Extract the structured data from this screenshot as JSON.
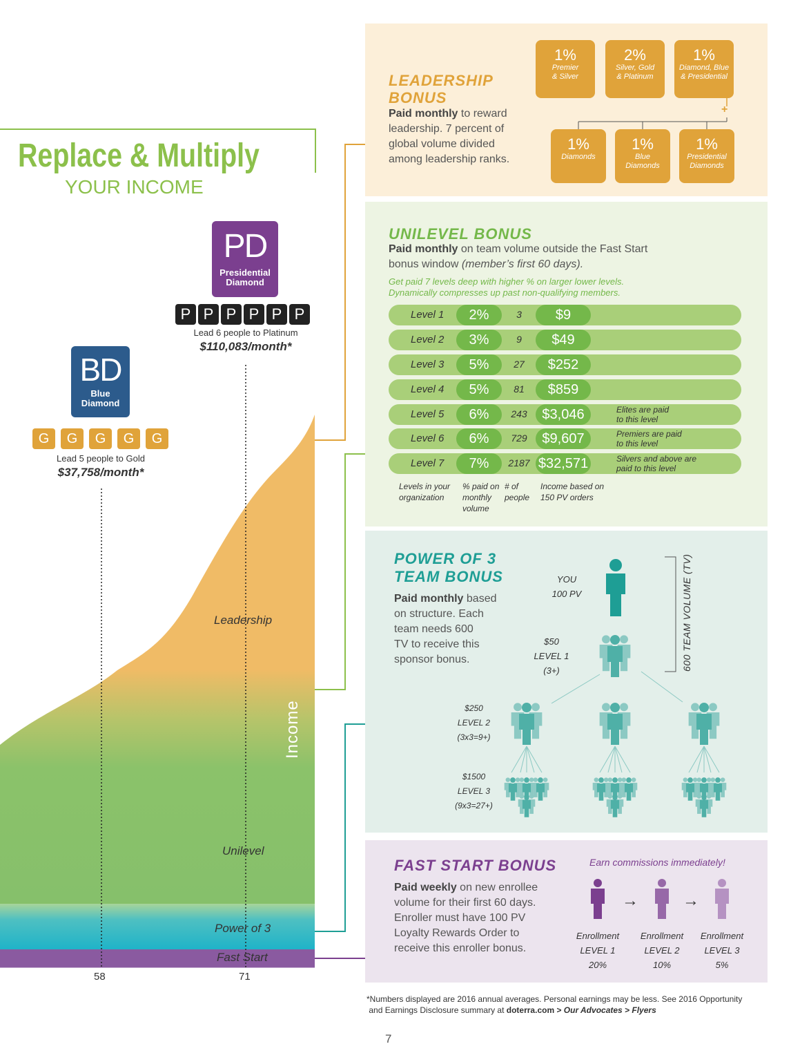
{
  "title": {
    "main": "Replace & Multiply",
    "sub": "YOUR INCOME"
  },
  "ranks": {
    "pd": {
      "abbr": "PD",
      "name_line1": "Presidential",
      "name_line2": "Diamond",
      "boxes": [
        "P",
        "P",
        "P",
        "P",
        "P",
        "P"
      ],
      "caption": "Lead 6 people to Platinum",
      "income": "$110,083/month*",
      "color": "#7b3f8f"
    },
    "bd": {
      "abbr": "BD",
      "name_line1": "Blue",
      "name_line2": "Diamond",
      "boxes": [
        "G",
        "G",
        "G",
        "G",
        "G"
      ],
      "caption": "Lead 5 people to Gold",
      "income": "$37,758/month*",
      "color": "#2c5b8c"
    }
  },
  "chart": {
    "layers": [
      "Leadership",
      "Unilevel",
      "Power of 3",
      "Fast Start"
    ],
    "axis_label": "Income",
    "ticks": [
      "58",
      "71"
    ]
  },
  "leadership": {
    "title_line1": "LEADERSHIP",
    "title_line2": "BONUS",
    "body_bold": "Paid monthly",
    "body": " to reward leadership. 7 percent of global volume divided among leadership ranks.",
    "boxes_top": [
      {
        "pct": "1%",
        "l1": "Premier",
        "l2": "& Silver"
      },
      {
        "pct": "2%",
        "l1": "Silver, Gold",
        "l2": "& Platinum"
      },
      {
        "pct": "1%",
        "l1": "Diamond, Blue",
        "l2": "& Presidential"
      }
    ],
    "plus": "+",
    "boxes_bottom": [
      {
        "pct": "1%",
        "l1": "Diamonds",
        "l2": ""
      },
      {
        "pct": "1%",
        "l1": "Blue",
        "l2": "Diamonds"
      },
      {
        "pct": "1%",
        "l1": "Presidential",
        "l2": "Diamonds"
      }
    ],
    "color": "#e0a33a"
  },
  "unilevel": {
    "title": "UNILEVEL BONUS",
    "body_bold": "Paid monthly",
    "body": " on team volume outside the Fast Start",
    "body2": "bonus window ",
    "body2_it": "(member’s first 60 days).",
    "note1": "Get paid 7 levels deep with higher % on larger lower levels.",
    "note2": "Dynamically compresses up past non-qualifying members.",
    "rows": [
      {
        "level": "Level 1",
        "pct": "2%",
        "people": "3",
        "income": "$9",
        "note1": "",
        "note2": ""
      },
      {
        "level": "Level 2",
        "pct": "3%",
        "people": "9",
        "income": "$49",
        "note1": "",
        "note2": ""
      },
      {
        "level": "Level 3",
        "pct": "5%",
        "people": "27",
        "income": "$252",
        "note1": "",
        "note2": ""
      },
      {
        "level": "Level 4",
        "pct": "5%",
        "people": "81",
        "income": "$859",
        "note1": "",
        "note2": ""
      },
      {
        "level": "Level 5",
        "pct": "6%",
        "people": "243",
        "income": "$3,046",
        "note1": "Elites are paid",
        "note2": "to this level"
      },
      {
        "level": "Level 6",
        "pct": "6%",
        "people": "729",
        "income": "$9,607",
        "note1": "Premiers are paid",
        "note2": "to this level"
      },
      {
        "level": "Level 7",
        "pct": "7%",
        "people": "2187",
        "income": "$32,571",
        "note1": "Silvers and above are",
        "note2": "paid to this level"
      }
    ],
    "col_heads": {
      "levels_l1": "Levels in your",
      "levels_l2": "organization",
      "pct_l1": "% paid on",
      "pct_l2": "monthly",
      "pct_l3": "volume",
      "ppl_l1": "# of",
      "ppl_l2": "people",
      "inc_l1": "Income based on",
      "inc_l2": "150 PV orders"
    },
    "color": "#74b84a"
  },
  "power3": {
    "title_line1": "POWER OF 3",
    "title_line2": "TEAM BONUS",
    "body_bold": "Paid monthly",
    "body_lines": [
      " based",
      "on structure. Each",
      "team needs 600",
      "TV to receive this",
      "sponsor bonus."
    ],
    "you_l1": "YOU",
    "you_l2": "100 PV",
    "lvl1": [
      "$50",
      "LEVEL 1",
      "(3+)"
    ],
    "lvl2": [
      "$250",
      "LEVEL 2",
      "(3x3=9+)"
    ],
    "lvl3": [
      "$1500",
      "LEVEL 3",
      "(9x3=27+)"
    ],
    "side_label": "600 TEAM VOLUME (TV)",
    "color": "#1e9e95"
  },
  "faststart": {
    "title": "FAST START BONUS",
    "tagline": "Earn commissions immediately!",
    "body_bold": "Paid weekly",
    "body_lines": [
      " on new enrollee",
      "volume for their first 60 days.",
      "Enroller must have 100 PV",
      "Loyalty Rewards Order to",
      "receive this enroller bonus."
    ],
    "levels": [
      {
        "l1": "Enrollment",
        "l2": "LEVEL 1",
        "pct": "20%",
        "color": "#7b3f8f"
      },
      {
        "l1": "Enrollment",
        "l2": "LEVEL 2",
        "pct": "10%",
        "color": "#9768a8"
      },
      {
        "l1": "Enrollment",
        "l2": "LEVEL 3",
        "pct": "5%",
        "color": "#b592c2"
      }
    ],
    "arrow": "→",
    "color": "#7b3f8f"
  },
  "footnote": {
    "line1": "*Numbers displayed are 2016 annual averages. Personal earnings may be less. See 2016 Opportunity",
    "line2_a": "and Earnings Disclosure summary at ",
    "line2_b": "doterra.com > ",
    "line2_c": "Our Advocates > Flyers"
  },
  "page_number": "7"
}
